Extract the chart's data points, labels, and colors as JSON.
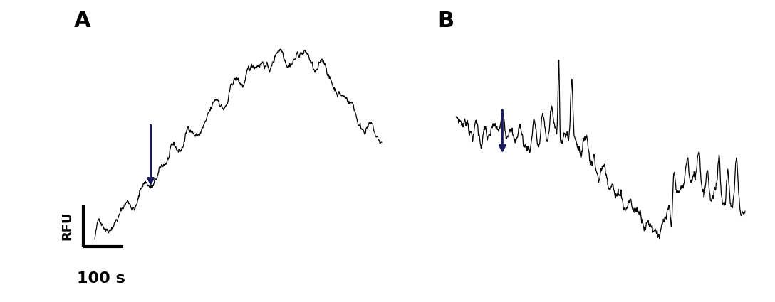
{
  "fig_width": 10.88,
  "fig_height": 4.25,
  "background_color": "#ffffff",
  "panel_A_label": "A",
  "panel_B_label": "B",
  "label_fontsize": 22,
  "label_fontweight": "bold",
  "rfu_label": "RFU",
  "scale_label": "100 s",
  "scale_fontsize": 16,
  "scale_fontweight": "bold",
  "arrow_color": "#1a1a5e",
  "line_color": "#000000",
  "line_width": 0.9
}
